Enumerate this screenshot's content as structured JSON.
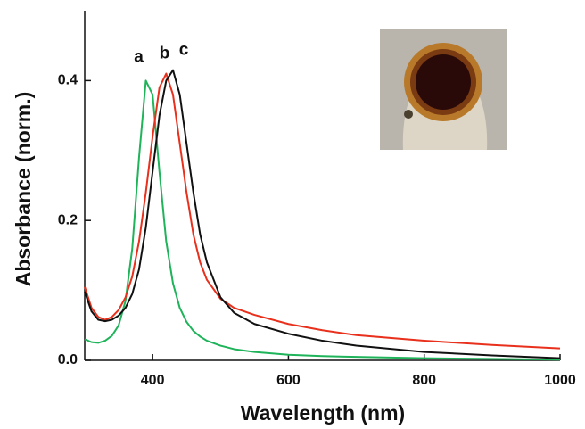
{
  "chart_data": {
    "type": "line",
    "x_label": "Wavelength (nm)",
    "y_label": "Absorbance (norm.)",
    "xlim": [
      300,
      1000
    ],
    "ylim": [
      0,
      0.5
    ],
    "xticks": [
      400,
      600,
      800,
      1000
    ],
    "yticks": [
      {
        "value": 0,
        "label": "0.0"
      },
      0.2,
      0.4
    ],
    "x": [
      300,
      310,
      320,
      330,
      340,
      350,
      360,
      370,
      380,
      390,
      400,
      410,
      420,
      430,
      440,
      450,
      460,
      470,
      480,
      500,
      520,
      550,
      600,
      650,
      700,
      800,
      900,
      1000
    ],
    "series": [
      {
        "name": "a",
        "color": "#1fb35a",
        "values": [
          0.03,
          0.026,
          0.025,
          0.028,
          0.035,
          0.05,
          0.085,
          0.16,
          0.29,
          0.4,
          0.38,
          0.27,
          0.17,
          0.11,
          0.075,
          0.055,
          0.042,
          0.034,
          0.028,
          0.021,
          0.016,
          0.012,
          0.008,
          0.006,
          0.005,
          0.003,
          0.002,
          0.001
        ]
      },
      {
        "name": "b",
        "color": "#e8301c",
        "values": [
          0.105,
          0.075,
          0.062,
          0.058,
          0.062,
          0.072,
          0.09,
          0.12,
          0.17,
          0.24,
          0.32,
          0.39,
          0.41,
          0.38,
          0.31,
          0.24,
          0.18,
          0.14,
          0.115,
          0.088,
          0.075,
          0.065,
          0.052,
          0.043,
          0.036,
          0.028,
          0.022,
          0.017
        ]
      },
      {
        "name": "c",
        "color": "#111111",
        "values": [
          0.098,
          0.07,
          0.058,
          0.056,
          0.058,
          0.064,
          0.075,
          0.095,
          0.13,
          0.19,
          0.27,
          0.35,
          0.4,
          0.415,
          0.38,
          0.31,
          0.24,
          0.18,
          0.14,
          0.09,
          0.068,
          0.052,
          0.038,
          0.028,
          0.021,
          0.012,
          0.007,
          0.003
        ]
      }
    ]
  }
}
